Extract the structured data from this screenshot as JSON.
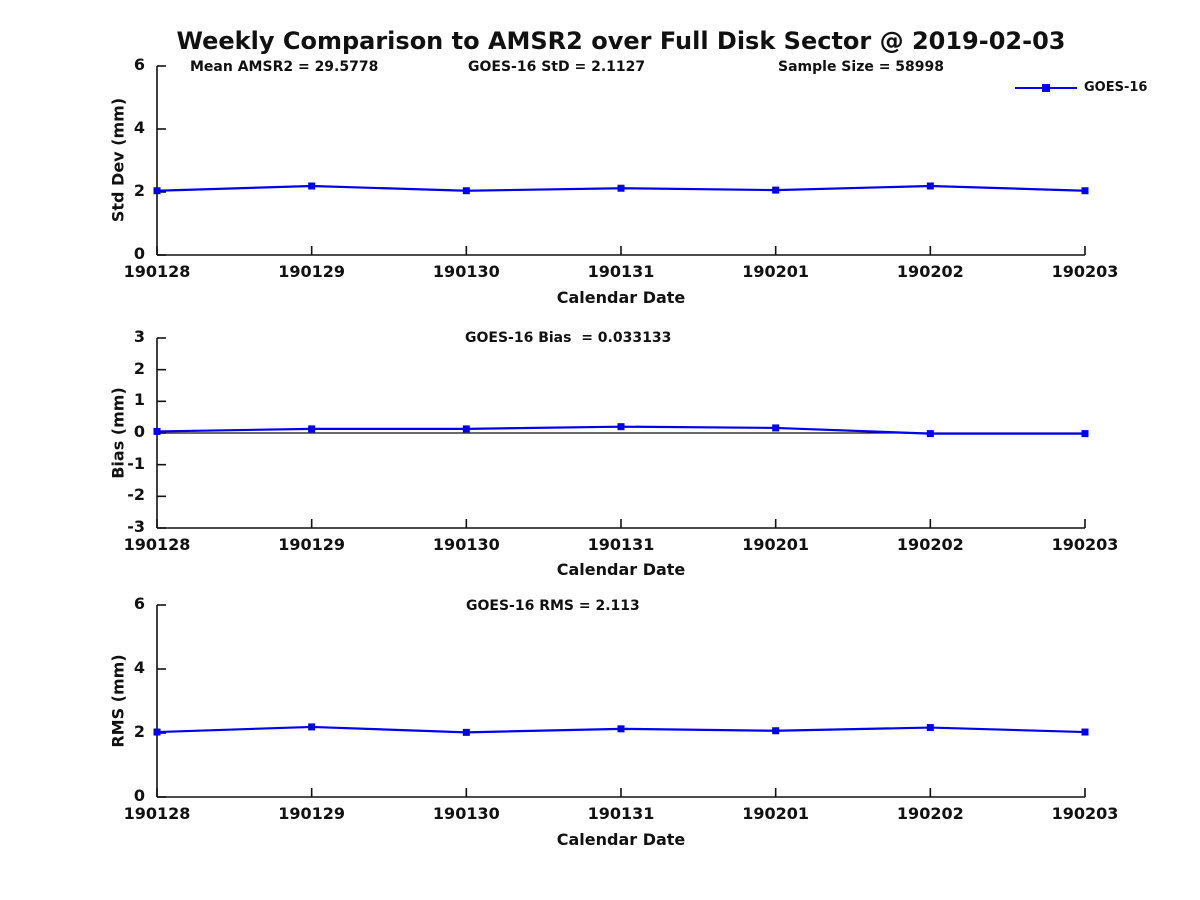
{
  "figure": {
    "title": "Weekly Comparison to AMSR2 over Full Disk Sector @ 2019-02-03",
    "legend": {
      "label": "GOES-16",
      "marker": "filled-square",
      "position": "top-right"
    },
    "colors": {
      "line": "#0000EE",
      "marker": "#0000EE",
      "axis": "#111111",
      "background": "#FFFFFF"
    }
  },
  "chart_data": [
    {
      "type": "line",
      "name": "std_dev_panel",
      "annotations": [
        "Mean AMSR2 = 29.5778",
        "GOES-16 StD = 2.1127",
        "Sample Size = 58998"
      ],
      "categories": [
        "190128",
        "190129",
        "190130",
        "190131",
        "190201",
        "190202",
        "190203"
      ],
      "series": [
        {
          "name": "GOES-16",
          "values": [
            2.04,
            2.19,
            2.04,
            2.12,
            2.06,
            2.19,
            2.04
          ]
        }
      ],
      "xlabel": "Calendar Date",
      "ylabel": "Std Dev (mm)",
      "ylim": [
        0,
        6
      ],
      "yticks": [
        0,
        2,
        4,
        6
      ],
      "grid": false,
      "zero_line": false
    },
    {
      "type": "line",
      "name": "bias_panel",
      "annotations": [
        "GOES-16 Bias  = 0.033133"
      ],
      "categories": [
        "190128",
        "190129",
        "190130",
        "190131",
        "190201",
        "190202",
        "190203"
      ],
      "series": [
        {
          "name": "GOES-16",
          "values": [
            0.05,
            0.13,
            0.13,
            0.2,
            0.16,
            -0.02,
            -0.02
          ]
        }
      ],
      "xlabel": "Calendar Date",
      "ylabel": "Bias (mm)",
      "ylim": [
        -3,
        3
      ],
      "yticks": [
        3,
        2,
        1,
        0,
        -1,
        -2,
        -3
      ],
      "grid": false,
      "zero_line": true
    },
    {
      "type": "line",
      "name": "rms_panel",
      "annotations": [
        "GOES-16 RMS = 2.113"
      ],
      "categories": [
        "190128",
        "190129",
        "190130",
        "190131",
        "190201",
        "190202",
        "190203"
      ],
      "series": [
        {
          "name": "GOES-16",
          "values": [
            2.03,
            2.19,
            2.02,
            2.13,
            2.07,
            2.17,
            2.03
          ]
        }
      ],
      "xlabel": "Calendar Date",
      "ylabel": "RMS (mm)",
      "ylim": [
        0,
        6
      ],
      "yticks": [
        0,
        2,
        4,
        6
      ],
      "grid": false,
      "zero_line": false
    }
  ]
}
